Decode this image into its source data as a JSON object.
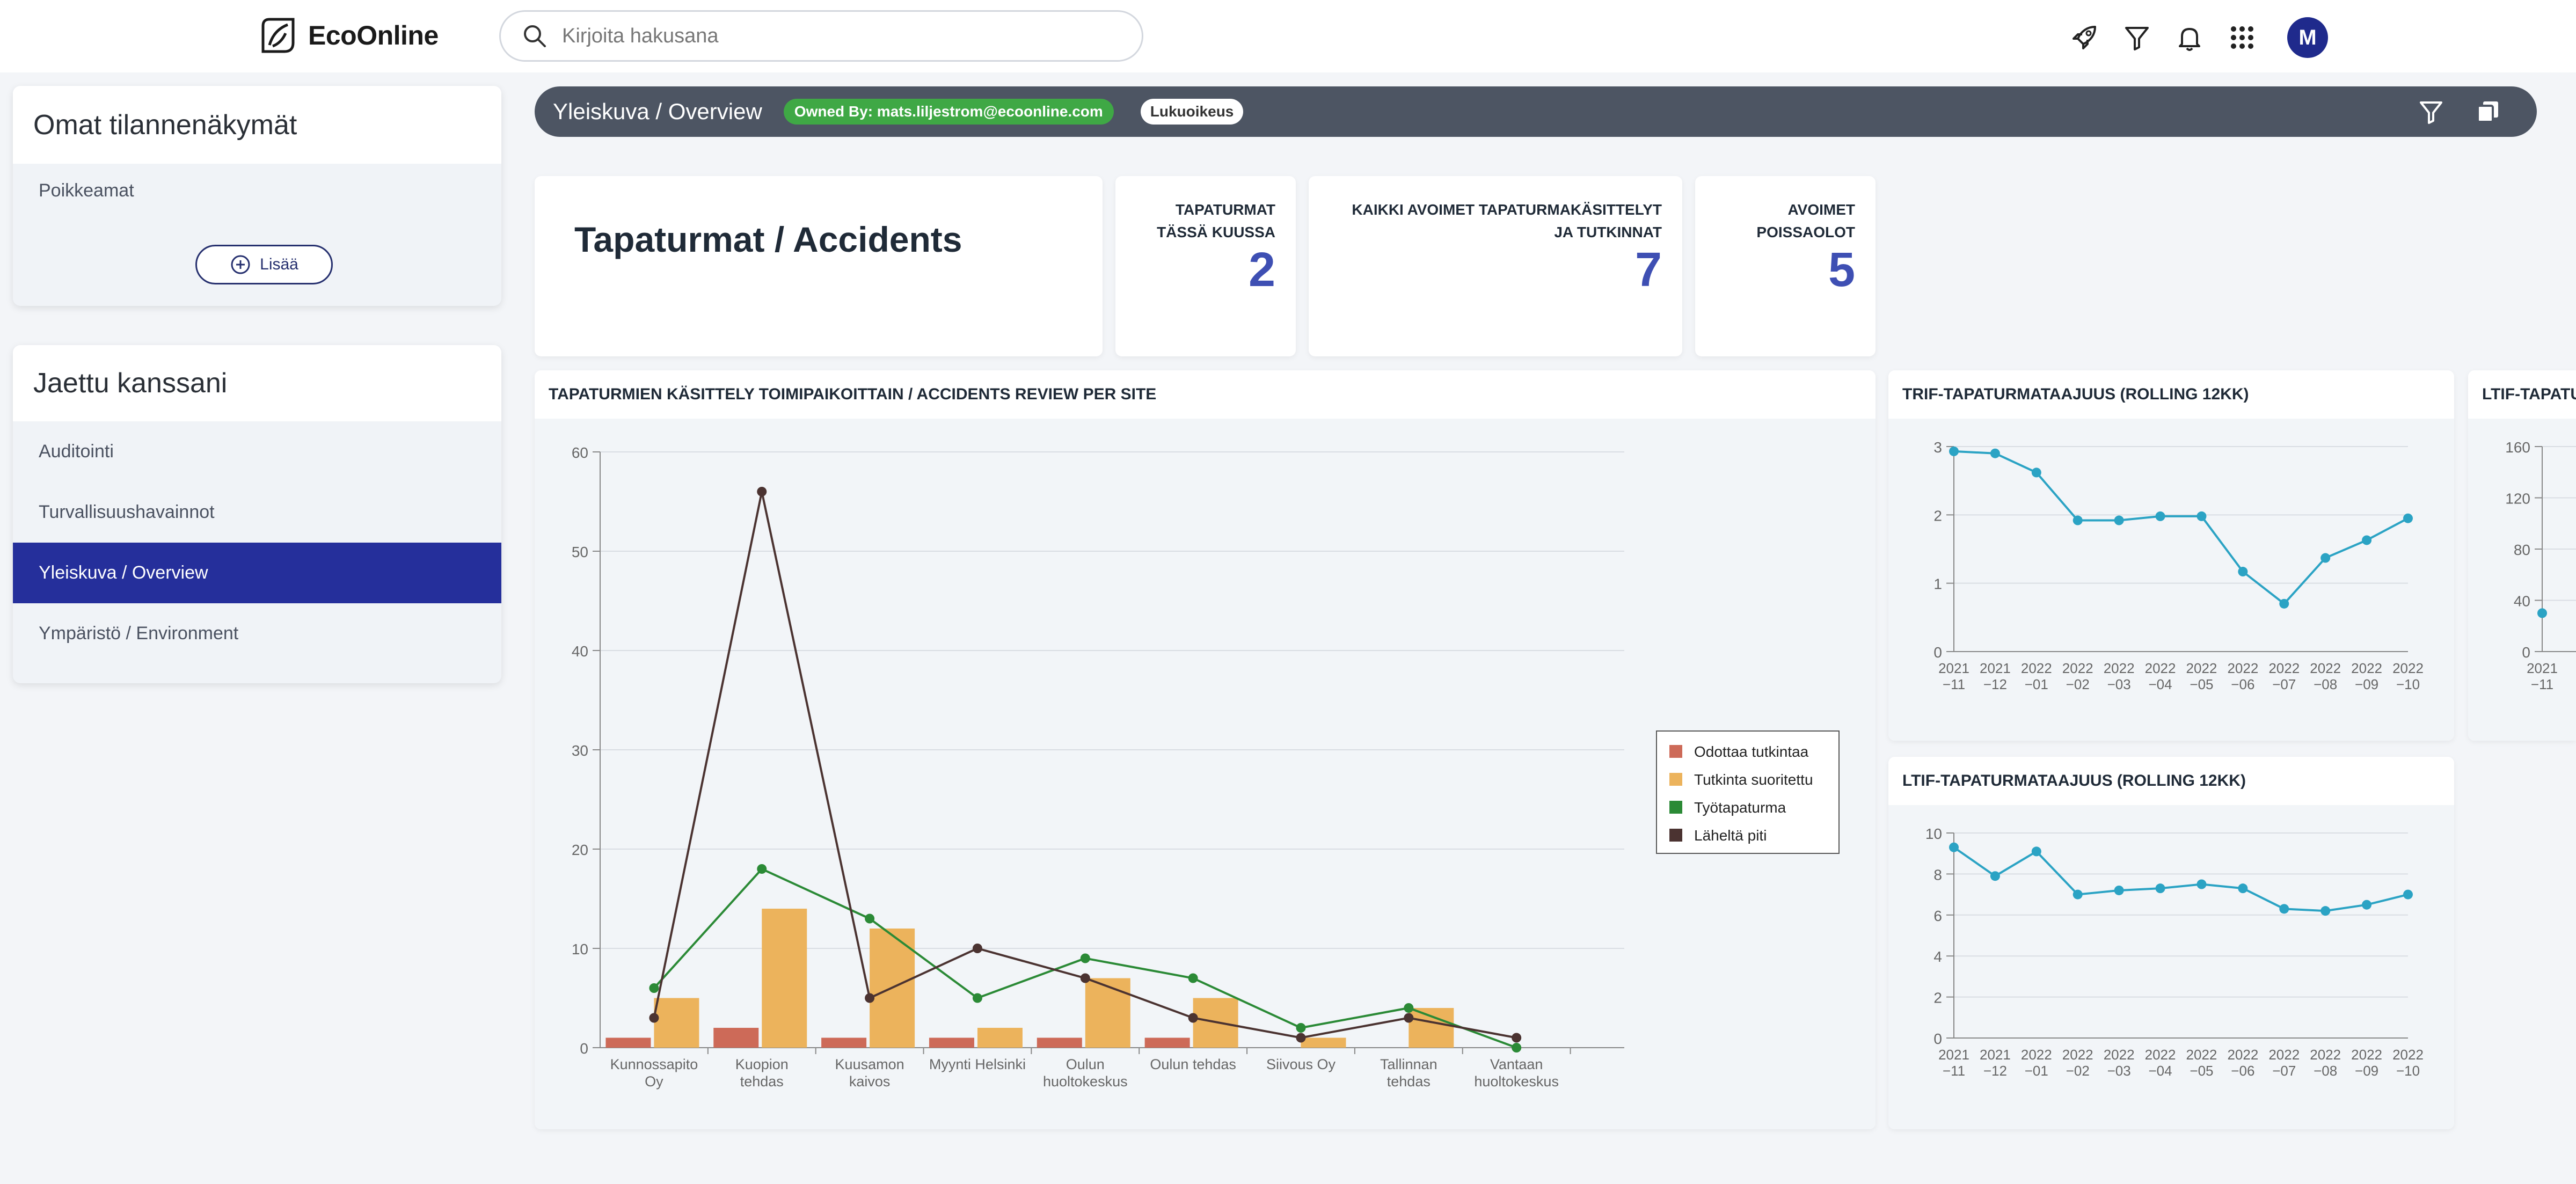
{
  "app": {
    "logo_text": "EcoOnline",
    "search_placeholder": "Kirjoita hakusana",
    "avatar_initial": "M"
  },
  "sidebar": {
    "own_views": {
      "title": "Omat tilannenäkymät",
      "items": [
        "Poikkeamat"
      ],
      "add_label": "Lisää"
    },
    "shared": {
      "title": "Jaettu kanssani",
      "items": [
        {
          "label": "Auditointi",
          "active": false
        },
        {
          "label": "Turvallisuushavainnot",
          "active": false
        },
        {
          "label": "Yleiskuva / Overview",
          "active": true
        },
        {
          "label": "Ympäristö / Environment",
          "active": false
        }
      ]
    }
  },
  "dashboard": {
    "title": "Yleiskuva / Overview",
    "owner_badge": "Owned By: mats.liljestrom@ecoonline.com",
    "access_badge": "Lukuoikeus",
    "main_title": "Tapaturmat / Accidents",
    "kpis": [
      {
        "label_line1": "TAPATURMAT",
        "label_line2": "TÄSSÄ KUUSSA",
        "value": "2"
      },
      {
        "label_line1": "KAIKKI AVOIMET TAPATURMAKÄSITTELYT",
        "label_line2": "JA TUTKINNAT",
        "value": "7"
      },
      {
        "label_line1": "AVOIMET",
        "label_line2": "POISSAOLOT",
        "value": "5"
      }
    ]
  },
  "colors": {
    "accent": "#252f9b",
    "kpi": "#3e4fb3",
    "header": "#4d5563",
    "badge_green": "#3fa845",
    "line_teal": "#2ba3c4"
  },
  "chart_data": [
    {
      "id": "site",
      "title": "TAPATURMIEN KÄSITTELY TOIMIPAIKOITTAIN / ACCIDENTS REVIEW PER SITE",
      "type": "bar",
      "categories": [
        [
          "Kunnossapito",
          "Oy"
        ],
        [
          "Kuopion",
          "tehdas"
        ],
        [
          "Kuusamon",
          "kaivos"
        ],
        [
          "Myynti Helsinki"
        ],
        [
          "Oulun",
          "huoltokeskus"
        ],
        [
          "Oulun tehdas"
        ],
        [
          "Siivous Oy"
        ],
        [
          "Tallinnan",
          "tehdas"
        ],
        [
          "Vantaan",
          "huoltokeskus"
        ]
      ],
      "ylim": [
        0,
        60
      ],
      "yticks": [
        0,
        10,
        20,
        30,
        40,
        50,
        60
      ],
      "grid": true,
      "legend_position": "right",
      "series": [
        {
          "name": "Odottaa tutkintaa",
          "type": "bar",
          "color": "#cd6a58",
          "values": [
            1,
            2,
            1,
            1,
            1,
            1,
            0,
            0,
            0
          ]
        },
        {
          "name": "Tutkinta suoritettu",
          "type": "bar",
          "color": "#ecb35c",
          "values": [
            5,
            14,
            12,
            2,
            7,
            5,
            1,
            4,
            0
          ]
        },
        {
          "name": "Työtapaturma",
          "type": "line",
          "color": "#2b8a36",
          "values": [
            6,
            18,
            13,
            5,
            9,
            7,
            2,
            4,
            0
          ]
        },
        {
          "name": "Läheltä piti",
          "type": "line",
          "color": "#4b3331",
          "values": [
            3,
            56,
            5,
            10,
            7,
            3,
            1,
            3,
            1
          ]
        }
      ]
    },
    {
      "id": "trif",
      "title": "TRIF-TAPATURMATAAJUUS (ROLLING 12KK)",
      "type": "line",
      "x": [
        "2021-11",
        "2021-12",
        "2022-01",
        "2022-02",
        "2022-03",
        "2022-04",
        "2022-05",
        "2022-06",
        "2022-07",
        "2022-08",
        "2022-09",
        "2022-10"
      ],
      "ylim": [
        0,
        3
      ],
      "yticks": [
        0,
        1,
        2,
        3
      ],
      "grid": true,
      "series": [
        {
          "color": "#2ba3c4",
          "values": [
            2.93,
            2.9,
            2.62,
            1.92,
            1.92,
            1.98,
            1.98,
            1.17,
            0.7,
            1.37,
            1.63,
            1.95
          ]
        }
      ]
    },
    {
      "id": "ltif",
      "title": "LTIF-TAPATURMATAAJUUS (ROLLING 12KK)",
      "type": "line",
      "x": [
        "2021-11",
        "2021-12",
        "2022-01",
        "2022-02",
        "2022-03",
        "2022-04",
        "2022-05",
        "2022-06",
        "2022-07",
        "2022-08",
        "2022-09",
        "2022-10"
      ],
      "ylim": [
        0,
        10
      ],
      "yticks": [
        0,
        2,
        4,
        6,
        8,
        10
      ],
      "grid": true,
      "series": [
        {
          "color": "#2ba3c4",
          "values": [
            9.3,
            7.9,
            9.1,
            7.0,
            7.2,
            7.3,
            7.5,
            7.3,
            6.3,
            6.2,
            6.5,
            7.0
          ]
        }
      ]
    },
    {
      "id": "partial",
      "title": "LTIF-TAPATU",
      "type": "line",
      "x": [
        "2021-11"
      ],
      "ylim": [
        0,
        160
      ],
      "yticks": [
        0,
        40,
        80,
        120,
        160
      ],
      "grid": true,
      "series": [
        {
          "color": "#2ba3c4",
          "values": [
            30
          ]
        }
      ]
    }
  ]
}
